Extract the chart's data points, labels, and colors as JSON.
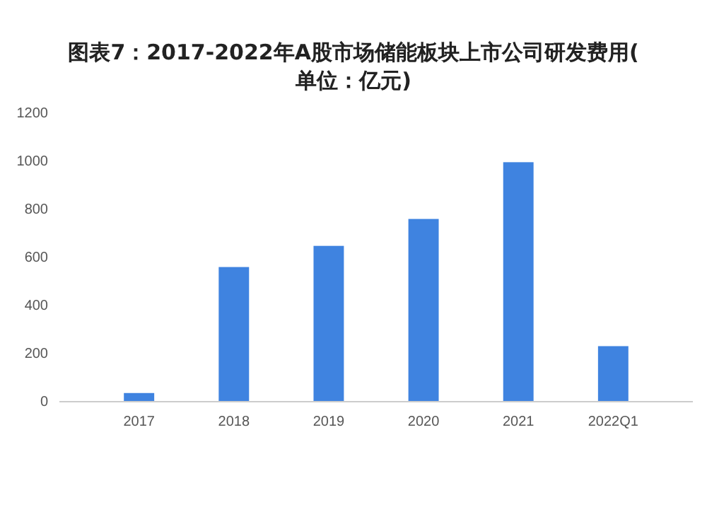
{
  "chart_data": {
    "type": "bar",
    "title": "图表7：2017-2022年A股市场储能板块上市公司研发费用(单位：亿元)",
    "categories": [
      "2017",
      "2018",
      "2019",
      "2020",
      "2021",
      "2022Q1"
    ],
    "values": [
      36,
      560,
      648,
      760,
      996,
      231
    ],
    "color": "#3f83e0",
    "ylim": [
      0,
      1200
    ],
    "yticks": [
      0,
      200,
      400,
      600,
      800,
      1000,
      1200
    ],
    "grid": false
  }
}
